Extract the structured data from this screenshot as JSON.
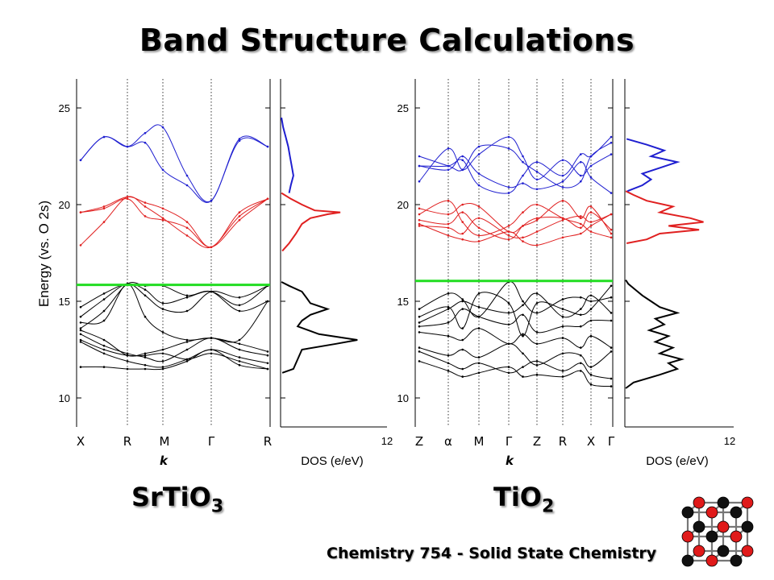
{
  "page": {
    "title": "Band Structure Calculations",
    "footer": "Chemistry 754 - Solid State Chemistry",
    "formula_left": {
      "base": "SrTiO",
      "sub": "3"
    },
    "formula_right": {
      "base": "TiO",
      "sub": "2"
    }
  },
  "colors": {
    "valence": "#000000",
    "conduction_low": "#e02020",
    "conduction_high": "#1f1fd0",
    "fermi": "#22dd22",
    "crystal_red": "#e01a1a",
    "crystal_black": "#111111"
  },
  "icons": [
    "crystal-structure-icon"
  ],
  "chart_data": [
    {
      "type": "line",
      "name": "SrTiO3 band structure",
      "ylabel": "Energy (vs. O 2s)",
      "xlabel": "k",
      "ylim": [
        8.5,
        26.5
      ],
      "yticks": [
        10,
        15,
        20,
        25
      ],
      "xticks": [
        "X",
        "R",
        "M",
        "Γ",
        "R"
      ],
      "k_points": [
        0,
        1,
        1.7,
        2.7,
        3.9
      ],
      "fermi_level": 15.85,
      "series": [
        {
          "group": "conduction_high",
          "x": [
            0,
            0.5,
            1,
            1.35,
            1.7,
            2.2,
            2.7,
            3.3,
            3.9
          ],
          "y": [
            22.3,
            23.5,
            23.0,
            23.7,
            24.0,
            21.5,
            20.2,
            23.4,
            23.0
          ]
        },
        {
          "group": "conduction_high",
          "x": [
            0,
            0.5,
            1,
            1.35,
            1.7,
            2.2,
            2.7,
            3.3,
            3.9
          ],
          "y": [
            22.3,
            23.5,
            23.0,
            23.2,
            21.8,
            21.0,
            20.2,
            23.3,
            23.0
          ]
        },
        {
          "group": "conduction_low",
          "x": [
            0,
            0.5,
            1,
            1.35,
            1.7,
            2.2,
            2.7,
            3.3,
            3.9
          ],
          "y": [
            19.6,
            19.9,
            20.4,
            20.1,
            19.8,
            19.1,
            17.8,
            19.6,
            20.3
          ]
        },
        {
          "group": "conduction_low",
          "x": [
            0,
            0.5,
            1,
            1.35,
            1.7,
            2.2,
            2.7,
            3.3,
            3.9
          ],
          "y": [
            17.9,
            19.1,
            20.4,
            19.9,
            19.3,
            18.4,
            17.8,
            19.4,
            20.3
          ]
        },
        {
          "group": "conduction_low",
          "x": [
            0,
            0.5,
            1,
            1.35,
            1.7,
            2.2,
            2.7,
            3.3,
            3.9
          ],
          "y": [
            19.6,
            19.8,
            20.3,
            19.4,
            19.2,
            18.8,
            17.8,
            19.2,
            20.3
          ]
        },
        {
          "group": "valence",
          "x": [
            0,
            0.5,
            1,
            1.35,
            1.7,
            2.2,
            2.7,
            3.3,
            3.9
          ],
          "y": [
            14.7,
            15.4,
            15.9,
            15.6,
            14.9,
            15.2,
            15.5,
            14.8,
            15.8
          ]
        },
        {
          "group": "valence",
          "x": [
            0,
            0.5,
            1,
            1.35,
            1.7,
            2.2,
            2.7,
            3.3,
            3.9
          ],
          "y": [
            14.2,
            15.1,
            15.9,
            15.3,
            14.6,
            14.5,
            15.5,
            15.2,
            15.8
          ]
        },
        {
          "group": "valence",
          "x": [
            0,
            0.5,
            1,
            1.35,
            1.7,
            2.2,
            2.7,
            3.3,
            3.9
          ],
          "y": [
            13.6,
            14.5,
            15.9,
            15.8,
            15.8,
            15.3,
            15.5,
            14.5,
            15.0
          ]
        },
        {
          "group": "valence",
          "x": [
            0,
            0.5,
            1,
            1.35,
            1.7,
            2.2,
            2.7,
            3.3,
            3.9
          ],
          "y": [
            13.5,
            13.0,
            12.2,
            12.3,
            12.5,
            12.9,
            13.1,
            12.8,
            12.4
          ]
        },
        {
          "group": "valence",
          "x": [
            0,
            0.5,
            1,
            1.35,
            1.7,
            2.2,
            2.7,
            3.3,
            3.9
          ],
          "y": [
            13.3,
            12.7,
            12.3,
            12.1,
            11.9,
            12.5,
            13.1,
            12.5,
            12.2
          ]
        },
        {
          "group": "valence",
          "x": [
            0,
            0.5,
            1,
            1.35,
            1.7,
            2.2,
            2.7,
            3.3,
            3.9
          ],
          "y": [
            12.9,
            12.3,
            11.9,
            11.7,
            11.6,
            12.0,
            12.5,
            12.1,
            11.8
          ]
        },
        {
          "group": "valence",
          "x": [
            0,
            0.5,
            1,
            1.35,
            1.7,
            2.2,
            2.7,
            3.3,
            3.9
          ],
          "y": [
            11.6,
            11.6,
            11.5,
            11.5,
            11.5,
            11.9,
            12.5,
            11.7,
            11.5
          ]
        },
        {
          "group": "valence",
          "x": [
            0,
            0.5,
            1,
            1.35,
            1.7,
            2.2,
            2.7,
            3.3,
            3.9
          ],
          "y": [
            13.9,
            14.0,
            15.9,
            14.2,
            13.4,
            13.0,
            13.1,
            13.0,
            15.0
          ]
        },
        {
          "group": "valence",
          "x": [
            0,
            0.5,
            1,
            1.35,
            1.7,
            2.2,
            2.7,
            3.3,
            3.9
          ],
          "y": [
            13.0,
            12.5,
            12.2,
            12.2,
            12.3,
            12.0,
            12.3,
            11.9,
            11.5
          ]
        }
      ]
    },
    {
      "type": "line",
      "name": "SrTiO3 density of states",
      "xlabel": "DOS (e/eV)",
      "xtick": "12",
      "ylim": [
        8.5,
        26.5
      ],
      "xlim": [
        0,
        12
      ],
      "series": [
        {
          "group": "valence",
          "energy": [
            11.3,
            11.5,
            12.0,
            12.5,
            12.8,
            13.0,
            13.3,
            13.7,
            14.0,
            14.3,
            14.6,
            14.9,
            15.2,
            15.5,
            15.8,
            16.0
          ],
          "dos": [
            0.2,
            1.5,
            2.0,
            2.5,
            6.5,
            9.0,
            4.5,
            2.0,
            2.5,
            3.5,
            5.5,
            3.5,
            3.0,
            2.5,
            1.0,
            0.1
          ]
        },
        {
          "group": "conduction_low",
          "energy": [
            17.6,
            18.0,
            18.5,
            19.0,
            19.3,
            19.5,
            19.6,
            19.7,
            20.0,
            20.3,
            20.6
          ],
          "dos": [
            0.2,
            1.0,
            1.8,
            2.5,
            3.5,
            5.5,
            7.0,
            4.0,
            2.5,
            1.2,
            0.1
          ]
        },
        {
          "group": "conduction_high",
          "energy": [
            20.6,
            21.0,
            21.5,
            22.0,
            22.5,
            23.0,
            23.5,
            24.0,
            24.5
          ],
          "dos": [
            1.0,
            1.2,
            1.5,
            1.3,
            1.1,
            0.9,
            0.6,
            0.3,
            0.1
          ]
        }
      ]
    },
    {
      "type": "line",
      "name": "TiO2 band structure",
      "xlabel": "k",
      "ylim": [
        8.5,
        26.5
      ],
      "yticks": [
        10,
        15,
        20,
        25
      ],
      "xticks": [
        "Z",
        "α",
        "M",
        "Γ",
        "Z",
        "R",
        "X",
        "Γ"
      ],
      "k_points": [
        0,
        0.45,
        1.2,
        1.55,
        2.25,
        2.65,
        3.2,
        3.5
      ],
      "fermi_level": 16.05,
      "series": [
        {
          "group": "conduction_high",
          "x": [
            0,
            0.45,
            0.8,
            1.2,
            1.55,
            1.9,
            2.25,
            2.65,
            3.0,
            3.2,
            3.5
          ],
          "y": [
            22.0,
            22.0,
            22.3,
            21.0,
            20.6,
            21.5,
            22.2,
            21.5,
            22.6,
            22.5,
            23.5
          ]
        },
        {
          "group": "conduction_high",
          "x": [
            0,
            0.45,
            0.8,
            1.2,
            1.55,
            1.9,
            2.25,
            2.65,
            3.0,
            3.2,
            3.5
          ],
          "y": [
            21.2,
            22.9,
            21.8,
            22.6,
            23.5,
            22.5,
            21.3,
            22.3,
            21.5,
            22.0,
            22.6
          ]
        },
        {
          "group": "conduction_high",
          "x": [
            0,
            0.45,
            0.8,
            1.2,
            1.55,
            1.9,
            2.25,
            2.65,
            3.0,
            3.2,
            3.5
          ],
          "y": [
            22.5,
            22.0,
            21.8,
            23.0,
            22.9,
            22.2,
            21.7,
            20.9,
            21.2,
            22.5,
            23.2
          ]
        },
        {
          "group": "conduction_high",
          "x": [
            0,
            0.45,
            0.8,
            1.2,
            1.55,
            1.9,
            2.25,
            2.65,
            3.0,
            3.2,
            3.5
          ],
          "y": [
            22.0,
            21.8,
            22.5,
            21.6,
            20.9,
            21.1,
            20.8,
            21.2,
            22.2,
            21.4,
            20.6
          ]
        },
        {
          "group": "conduction_low",
          "x": [
            0,
            0.45,
            0.8,
            1.2,
            1.55,
            1.9,
            2.25,
            2.65,
            3.0,
            3.2,
            3.5
          ],
          "y": [
            19.5,
            20.2,
            19.1,
            18.4,
            18.9,
            19.6,
            20.0,
            19.3,
            19.0,
            18.6,
            18.3
          ]
        },
        {
          "group": "conduction_low",
          "x": [
            0,
            0.45,
            0.8,
            1.2,
            1.55,
            1.9,
            2.25,
            2.65,
            3.0,
            3.2,
            3.5
          ],
          "y": [
            19.2,
            19.0,
            19.6,
            18.8,
            18.2,
            18.9,
            19.3,
            19.3,
            18.8,
            19.6,
            18.7
          ]
        },
        {
          "group": "conduction_low",
          "x": [
            0,
            0.45,
            0.8,
            1.2,
            1.55,
            1.9,
            2.25,
            2.65,
            3.0,
            3.2,
            3.5
          ],
          "y": [
            18.9,
            18.8,
            18.5,
            19.3,
            18.4,
            18.3,
            18.6,
            19.2,
            19.4,
            19.1,
            19.5
          ]
        },
        {
          "group": "conduction_low",
          "x": [
            0,
            0.45,
            0.8,
            1.2,
            1.55,
            1.9,
            2.25,
            2.65,
            3.0,
            3.2,
            3.5
          ],
          "y": [
            19.0,
            18.4,
            18.2,
            18.1,
            18.6,
            18.1,
            17.9,
            18.3,
            18.5,
            18.9,
            19.5
          ]
        },
        {
          "group": "conduction_low",
          "x": [
            0,
            0.45,
            0.8,
            1.2,
            1.55,
            1.9,
            2.25,
            2.65,
            3.0,
            3.2,
            3.5
          ],
          "y": [
            19.8,
            19.5,
            20.0,
            19.9,
            18.6,
            18.9,
            19.2,
            20.2,
            19.3,
            19.9,
            18.5
          ]
        },
        {
          "group": "valence",
          "x": [
            0,
            0.45,
            0.8,
            1.2,
            1.55,
            1.9,
            2.25,
            2.65,
            3.0,
            3.2,
            3.5
          ],
          "y": [
            14.6,
            15.4,
            15.1,
            14.2,
            16.0,
            15.0,
            14.4,
            15.1,
            15.2,
            15.0,
            15.2
          ]
        },
        {
          "group": "valence",
          "x": [
            0,
            0.45,
            0.8,
            1.2,
            1.55,
            1.9,
            2.25,
            2.65,
            3.0,
            3.2,
            3.5
          ],
          "y": [
            14.2,
            14.7,
            13.6,
            15.4,
            14.9,
            13.2,
            14.9,
            14.6,
            14.3,
            14.6,
            15.8
          ]
        },
        {
          "group": "valence",
          "x": [
            0,
            0.45,
            0.8,
            1.2,
            1.55,
            1.9,
            2.25,
            2.65,
            3.0,
            3.2,
            3.5
          ],
          "y": [
            13.7,
            13.9,
            14.6,
            14.2,
            13.8,
            14.3,
            13.4,
            13.7,
            13.7,
            14.0,
            14.0
          ]
        },
        {
          "group": "valence",
          "x": [
            0,
            0.45,
            0.8,
            1.2,
            1.55,
            1.9,
            2.25,
            2.65,
            3.0,
            3.2,
            3.5
          ],
          "y": [
            13.4,
            13.2,
            13.0,
            13.6,
            12.8,
            13.3,
            12.8,
            13.1,
            12.6,
            13.2,
            12.6
          ]
        },
        {
          "group": "valence",
          "x": [
            0,
            0.45,
            0.8,
            1.2,
            1.55,
            1.9,
            2.25,
            2.65,
            3.0,
            3.2,
            3.5
          ],
          "y": [
            12.6,
            12.2,
            12.5,
            12.1,
            12.8,
            12.3,
            11.7,
            12.3,
            12.2,
            11.6,
            12.4
          ]
        },
        {
          "group": "valence",
          "x": [
            0,
            0.45,
            0.8,
            1.2,
            1.55,
            1.9,
            2.25,
            2.65,
            3.0,
            3.2,
            3.5
          ],
          "y": [
            12.4,
            11.8,
            11.5,
            11.8,
            11.3,
            11.6,
            11.9,
            11.4,
            11.8,
            11.2,
            11.0
          ]
        },
        {
          "group": "valence",
          "x": [
            0,
            0.45,
            0.8,
            1.2,
            1.55,
            1.9,
            2.25,
            2.65,
            3.0,
            3.2,
            3.5
          ],
          "y": [
            11.9,
            11.4,
            11.1,
            11.3,
            11.6,
            11.1,
            11.2,
            11.1,
            11.4,
            10.7,
            10.6
          ]
        },
        {
          "group": "valence",
          "x": [
            0,
            0.45,
            0.8,
            1.2,
            1.55,
            1.9,
            2.25,
            2.65,
            3.0,
            3.2,
            3.5
          ],
          "y": [
            13.9,
            14.6,
            15.0,
            14.7,
            14.4,
            14.8,
            15.4,
            14.2,
            14.6,
            15.3,
            14.4
          ]
        }
      ]
    },
    {
      "type": "line",
      "name": "TiO2 density of states",
      "xlabel": "DOS (e/eV)",
      "xtick": "12",
      "ylim": [
        8.5,
        26.5
      ],
      "xlim": [
        0,
        12
      ],
      "series": [
        {
          "group": "valence",
          "energy": [
            10.5,
            10.8,
            11.2,
            11.5,
            11.8,
            12.0,
            12.3,
            12.6,
            12.9,
            13.2,
            13.5,
            13.8,
            14.1,
            14.4,
            14.7,
            15.0,
            15.3,
            15.6,
            15.9,
            16.1
          ],
          "dos": [
            0.1,
            1.0,
            4.0,
            6.0,
            5.0,
            6.5,
            4.0,
            5.5,
            3.5,
            5.0,
            2.8,
            4.5,
            3.5,
            6.0,
            4.0,
            3.0,
            2.0,
            1.2,
            0.4,
            0.1
          ]
        },
        {
          "group": "conduction_low",
          "energy": [
            18.0,
            18.2,
            18.5,
            18.7,
            18.9,
            19.1,
            19.3,
            19.6,
            19.9,
            20.2,
            20.5,
            20.7
          ],
          "dos": [
            0.2,
            2.5,
            4.0,
            8.5,
            5.0,
            9.0,
            7.5,
            4.0,
            5.5,
            2.5,
            1.0,
            0.1
          ]
        },
        {
          "group": "conduction_high",
          "energy": [
            20.7,
            21.0,
            21.3,
            21.6,
            21.9,
            22.2,
            22.5,
            22.8,
            23.1,
            23.4
          ],
          "dos": [
            0.3,
            2.0,
            3.0,
            2.0,
            4.0,
            6.0,
            3.0,
            4.5,
            2.5,
            0.2
          ]
        }
      ]
    }
  ]
}
